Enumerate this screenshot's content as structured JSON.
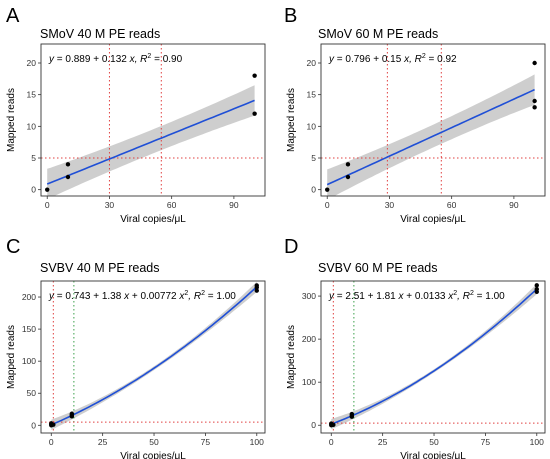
{
  "figure": {
    "style": {
      "fit_color": "#1f4fd6",
      "band_color": "#bdbdbd",
      "ref_line_color": "#e04040",
      "green_ref_color": "#3aa04a",
      "point_color": "#000000"
    }
  },
  "chart_data": [
    {
      "panel": "A",
      "type": "scatter",
      "title": "SMoV 40 M PE reads",
      "xlabel": "Viral copies/μL",
      "ylabel": "Mapped reads",
      "xlim": [
        -3,
        105
      ],
      "ylim": [
        -1,
        23
      ],
      "xticks": [
        0,
        30,
        60,
        90
      ],
      "yticks": [
        0,
        5,
        10,
        15,
        20
      ],
      "grid": false,
      "equation": {
        "y": "y",
        "rhs": " = 0.889 + 0.132 ",
        "var": "x",
        "r2_label": ", R",
        "r2_sup": "2",
        "r2_val": " = 0.90"
      },
      "fit": {
        "kind": "linear",
        "coefficients": [
          0.889,
          0.132
        ],
        "band_halfwidth": [
          1.9,
          2.4
        ]
      },
      "points": [
        [
          0,
          0
        ],
        [
          10,
          2
        ],
        [
          10,
          4
        ],
        [
          100,
          18
        ],
        [
          100,
          12
        ]
      ],
      "ref_lines": [
        {
          "axis": "x",
          "value": 30,
          "style": "dotted",
          "color": "#e04040"
        },
        {
          "axis": "x",
          "value": 55,
          "style": "dotted",
          "color": "#e04040"
        },
        {
          "axis": "y",
          "value": 5,
          "style": "dotted",
          "color": "#e04040"
        }
      ]
    },
    {
      "panel": "B",
      "type": "scatter",
      "title": "SMoV 60 M PE reads",
      "xlabel": "Viral copies/μL",
      "ylabel": "Mapped reads",
      "xlim": [
        -3,
        105
      ],
      "ylim": [
        -1,
        23
      ],
      "xticks": [
        0,
        30,
        60,
        90
      ],
      "yticks": [
        0,
        5,
        10,
        15,
        20
      ],
      "grid": false,
      "equation": {
        "y": "y",
        "rhs": " = 0.796 + 0.15 ",
        "var": "x",
        "r2_label": ", R",
        "r2_sup": "2",
        "r2_val": " = 0.92"
      },
      "fit": {
        "kind": "linear",
        "coefficients": [
          0.796,
          0.15
        ],
        "band_halfwidth": [
          1.8,
          2.4
        ]
      },
      "points": [
        [
          0,
          0
        ],
        [
          10,
          2
        ],
        [
          10,
          4
        ],
        [
          100,
          20
        ],
        [
          100,
          14
        ],
        [
          100,
          13
        ]
      ],
      "ref_lines": [
        {
          "axis": "x",
          "value": 29,
          "style": "dotted",
          "color": "#e04040"
        },
        {
          "axis": "x",
          "value": 55,
          "style": "dotted",
          "color": "#e04040"
        },
        {
          "axis": "y",
          "value": 5,
          "style": "dotted",
          "color": "#e04040"
        }
      ]
    },
    {
      "panel": "C",
      "type": "scatter",
      "title": "SVBV 40 M PE reads",
      "xlabel": "Viral copies/μL",
      "ylabel": "Mapped reads",
      "xlim": [
        -5,
        104
      ],
      "ylim": [
        -12,
        225
      ],
      "xticks": [
        0,
        25,
        50,
        75,
        100
      ],
      "yticks": [
        0,
        50,
        100,
        150,
        200
      ],
      "grid": false,
      "equation": {
        "y": "y",
        "rhs": " = 0.743 + 1.38 ",
        "var": "x",
        "mid": " + 0.00772 ",
        "var2": "x",
        "sq": "2",
        "r2_label": ", R",
        "r2_sup": "2",
        "r2_val": " = 1.00"
      },
      "fit": {
        "kind": "quadratic",
        "coefficients": [
          0.743,
          1.38,
          0.00772
        ],
        "band_halfwidth": [
          3,
          8
        ]
      },
      "points": [
        [
          0,
          0
        ],
        [
          0,
          1
        ],
        [
          0,
          2
        ],
        [
          0,
          3
        ],
        [
          1,
          1
        ],
        [
          10,
          14
        ],
        [
          10,
          16
        ],
        [
          10,
          18
        ],
        [
          100,
          210
        ],
        [
          100,
          215
        ],
        [
          100,
          218
        ]
      ],
      "ref_lines": [
        {
          "axis": "x",
          "value": 1,
          "style": "dotted",
          "color": "#e04040"
        },
        {
          "axis": "x",
          "value": 11,
          "style": "dotted",
          "color": "#3aa04a"
        },
        {
          "axis": "y",
          "value": 5,
          "style": "dotted",
          "color": "#e04040"
        }
      ]
    },
    {
      "panel": "D",
      "type": "scatter",
      "title": "SVBV 60 M PE reads",
      "xlabel": "Viral copies/μL",
      "ylabel": "Mapped reads",
      "xlim": [
        -5,
        104
      ],
      "ylim": [
        -18,
        335
      ],
      "xticks": [
        0,
        25,
        50,
        75,
        100
      ],
      "yticks": [
        0,
        100,
        200,
        300
      ],
      "grid": false,
      "equation": {
        "y": "y",
        "rhs": " = 2.51 + 1.81 ",
        "var": "x",
        "mid": " + 0.0133 ",
        "var2": "x",
        "sq": "2",
        "r2_label": ", R",
        "r2_sup": "2",
        "r2_val": " = 1.00"
      },
      "fit": {
        "kind": "quadratic",
        "coefficients": [
          2.51,
          1.81,
          0.0133
        ],
        "band_halfwidth": [
          4,
          12
        ]
      },
      "points": [
        [
          0,
          0
        ],
        [
          0,
          2
        ],
        [
          0,
          4
        ],
        [
          1,
          1
        ],
        [
          10,
          20
        ],
        [
          10,
          23
        ],
        [
          10,
          26
        ],
        [
          100,
          310
        ],
        [
          100,
          316
        ],
        [
          100,
          325
        ]
      ],
      "ref_lines": [
        {
          "axis": "x",
          "value": 1,
          "style": "dotted",
          "color": "#e04040"
        },
        {
          "axis": "x",
          "value": 11,
          "style": "dotted",
          "color": "#3aa04a"
        },
        {
          "axis": "y",
          "value": 5,
          "style": "dotted",
          "color": "#e04040"
        }
      ]
    }
  ]
}
